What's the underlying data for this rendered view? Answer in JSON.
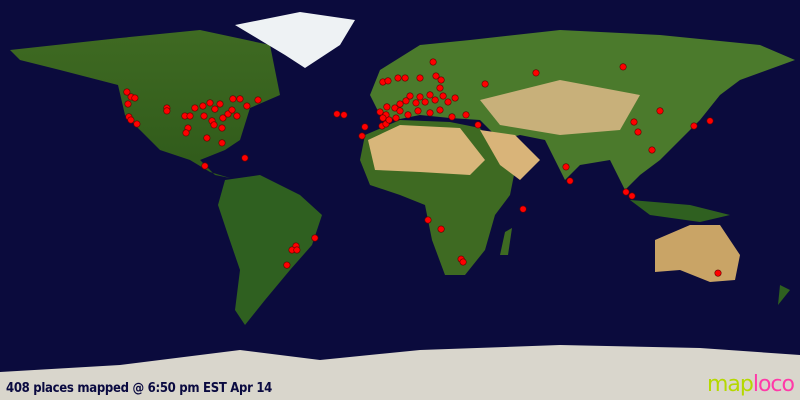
{
  "status_text": "408 places mapped @ 6:50 pm EST Apr 14",
  "logo": {
    "part1": "map",
    "part2": "loco"
  },
  "colors": {
    "ocean": "#0b0b3d",
    "marker": "#ff0000",
    "logo_map": "#b5d800",
    "logo_loco": "#ff3aa8"
  },
  "markers_lon_lat": [
    [
      -122.9,
      48.6
    ],
    [
      -121.0,
      46.4
    ],
    [
      -119.3,
      45.9
    ],
    [
      -122.4,
      43.2
    ],
    [
      -122.0,
      37.4
    ],
    [
      -121.1,
      36.0
    ],
    [
      -118.4,
      34.2
    ],
    [
      -104.9,
      41.4
    ],
    [
      -104.9,
      40.1
    ],
    [
      -96.8,
      37.8
    ],
    [
      -94.5,
      37.8
    ],
    [
      -95.4,
      32.4
    ],
    [
      -96.3,
      30.2
    ],
    [
      -92.3,
      41.4
    ],
    [
      -88.7,
      42.3
    ],
    [
      -85.5,
      43.7
    ],
    [
      -83.3,
      40.9
    ],
    [
      -81.0,
      43.2
    ],
    [
      -75.2,
      45.5
    ],
    [
      -72.0,
      45.5
    ],
    [
      -68.9,
      42.3
    ],
    [
      -63.9,
      45.0
    ],
    [
      -88.2,
      37.8
    ],
    [
      -84.6,
      35.6
    ],
    [
      -79.7,
      36.9
    ],
    [
      -77.4,
      38.7
    ],
    [
      -75.6,
      40.5
    ],
    [
      -73.4,
      37.8
    ],
    [
      -80.1,
      32.4
    ],
    [
      -83.7,
      33.8
    ],
    [
      -86.9,
      27.9
    ],
    [
      -80.1,
      25.7
    ],
    [
      -69.8,
      18.9
    ],
    [
      -87.8,
      15.3
    ],
    [
      -38.3,
      -17.1
    ],
    [
      -46.8,
      -20.7
    ],
    [
      -48.6,
      -22.5
    ],
    [
      -50.9,
      -29.3
    ],
    [
      -46.4,
      -22.5
    ],
    [
      -7.7,
      53.1
    ],
    [
      -5.4,
      53.6
    ],
    [
      -0.9,
      54.9
    ],
    [
      2.3,
      54.9
    ],
    [
      9.0,
      54.9
    ],
    [
      14.9,
      62.1
    ],
    [
      16.2,
      55.8
    ],
    [
      18.5,
      54.0
    ],
    [
      -5.9,
      41.9
    ],
    [
      -9.0,
      39.6
    ],
    [
      -6.3,
      38.3
    ],
    [
      -2.3,
      41.4
    ],
    [
      0.0,
      43.2
    ],
    [
      2.7,
      44.6
    ],
    [
      4.5,
      46.8
    ],
    [
      7.2,
      43.7
    ],
    [
      9.0,
      46.4
    ],
    [
      11.3,
      44.1
    ],
    [
      13.5,
      47.3
    ],
    [
      15.8,
      45.0
    ],
    [
      18.0,
      50.4
    ],
    [
      19.4,
      46.8
    ],
    [
      21.6,
      44.1
    ],
    [
      24.8,
      45.9
    ],
    [
      13.5,
      39.2
    ],
    [
      18.0,
      40.5
    ],
    [
      8.1,
      40.1
    ],
    [
      3.6,
      38.3
    ],
    [
      -1.8,
      36.9
    ],
    [
      0.0,
      40.1
    ],
    [
      -7.7,
      36.9
    ],
    [
      -15.8,
      32.9
    ],
    [
      -17.1,
      28.8
    ],
    [
      -28.4,
      38.7
    ],
    [
      -25.2,
      38.3
    ],
    [
      -8.1,
      33.3
    ],
    [
      -6.3,
      34.2
    ],
    [
      -4.9,
      36.0
    ],
    [
      23.4,
      37.4
    ],
    [
      29.7,
      38.3
    ],
    [
      35.1,
      33.8
    ],
    [
      38.3,
      52.2
    ],
    [
      61.2,
      57.2
    ],
    [
      100.4,
      59.9
    ],
    [
      74.7,
      14.9
    ],
    [
      76.5,
      8.6
    ],
    [
      105.3,
      35.1
    ],
    [
      107.1,
      30.6
    ],
    [
      113.4,
      22.5
    ],
    [
      117.0,
      40.1
    ],
    [
      132.3,
      33.3
    ],
    [
      139.5,
      35.6
    ],
    [
      101.7,
      3.6
    ],
    [
      104.4,
      1.8
    ],
    [
      12.6,
      -9.0
    ],
    [
      18.5,
      -13.1
    ],
    [
      27.5,
      -26.6
    ],
    [
      28.4,
      -27.9
    ],
    [
      55.4,
      -4.1
    ],
    [
      143.1,
      -32.9
    ]
  ]
}
